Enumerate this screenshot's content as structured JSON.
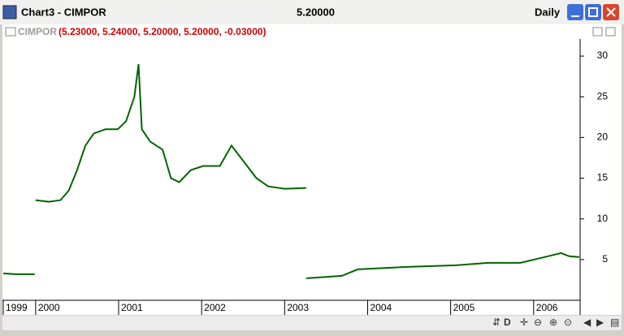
{
  "window": {
    "title": "Chart3 - CIMPOR",
    "price": "5.20000",
    "period": "Daily"
  },
  "chart_data": {
    "type": "line",
    "symbol": "CIMPOR",
    "quote": "(5.23000, 5.24000, 5.20000, 5.20000, -0.03000)",
    "x": [
      1999.61,
      1999.76,
      1999.99,
      2000.0,
      2000.0,
      2000.16,
      2000.3,
      2000.4,
      2000.5,
      2000.6,
      2000.7,
      2000.84,
      2000.99,
      2001.09,
      2001.19,
      2001.24,
      2001.28,
      2001.38,
      2001.53,
      2001.63,
      2001.73,
      2001.87,
      2002.02,
      2002.22,
      2002.36,
      2002.51,
      2002.66,
      2002.8,
      2003.0,
      2003.26,
      2003.26,
      2003.26,
      2003.69,
      2003.88,
      2004.47,
      2005.06,
      2005.45,
      2005.84,
      2006.09,
      2006.33,
      2006.43,
      2006.55
    ],
    "series": [
      {
        "name": "CIMPOR",
        "color": "#006400",
        "values": [
          3.3,
          3.2,
          3.2,
          null,
          12.3,
          12.1,
          12.3,
          13.5,
          16,
          19,
          20.5,
          21,
          21,
          22,
          25,
          29,
          21,
          19.5,
          18.5,
          15,
          14.5,
          16,
          16.5,
          16.5,
          19,
          17,
          15,
          14,
          13.7,
          13.8,
          null,
          2.7,
          3.0,
          3.8,
          4.1,
          4.3,
          4.6,
          4.6,
          5.2,
          5.8,
          5.4,
          5.3
        ]
      }
    ],
    "xlim": [
      1999.61,
      2006.56
    ],
    "xticks": [
      {
        "value": 1999.61,
        "label": "1999"
      },
      2000,
      2001,
      2002,
      2003,
      2004,
      2005,
      2006
    ],
    "ylim": [
      0,
      32.1
    ],
    "yticks": [
      5,
      10,
      15,
      20,
      25,
      30
    ]
  }
}
